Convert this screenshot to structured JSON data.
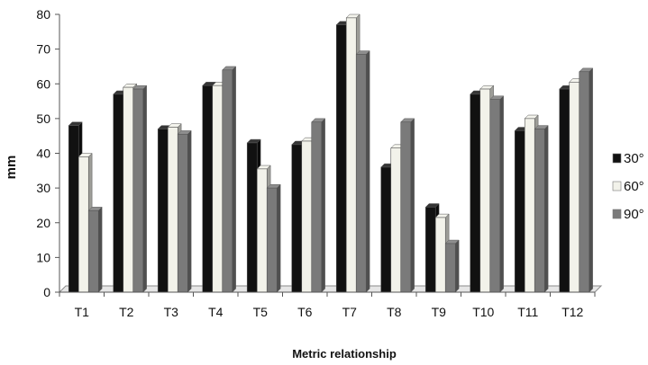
{
  "chart_data": {
    "type": "bar",
    "title": "",
    "xlabel": "Metric relationship",
    "ylabel": "mm",
    "ylim": [
      0,
      80
    ],
    "yticks": [
      0,
      10,
      20,
      30,
      40,
      50,
      60,
      70,
      80
    ],
    "grid": false,
    "legend_position": "right",
    "categories": [
      "T1",
      "T2",
      "T3",
      "T4",
      "T5",
      "T6",
      "T7",
      "T8",
      "T9",
      "T10",
      "T11",
      "T12"
    ],
    "series": [
      {
        "name": "30°",
        "color": "#111111",
        "values": [
          48,
          57,
          47,
          59.5,
          43,
          42.5,
          77,
          36,
          24.5,
          57,
          46.5,
          58.5
        ]
      },
      {
        "name": "60°",
        "color": "#f2f2ea",
        "values": [
          39,
          59,
          47.5,
          59.5,
          35.5,
          43.5,
          79,
          41.5,
          21.5,
          58.5,
          50,
          60.5
        ]
      },
      {
        "name": "90°",
        "color": "#7a7a7a",
        "values": [
          23.5,
          58.5,
          45.5,
          64,
          30,
          49,
          68.5,
          49,
          14,
          55.5,
          47,
          63.5
        ]
      }
    ]
  }
}
